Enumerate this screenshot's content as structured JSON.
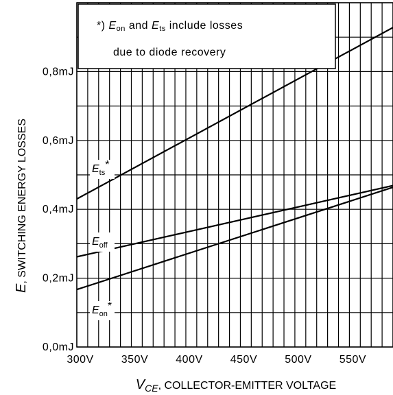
{
  "chart_data": {
    "type": "line",
    "x_label_var": "V",
    "x_label_sub": "CE",
    "x_label_rest": ", COLLECTOR-EMITTER VOLTAGE",
    "y_label_var": "E",
    "y_label_rest": ", SWITCHING ENERGY LOSSES",
    "xlim": [
      300,
      590
    ],
    "ylim": [
      0,
      1.0
    ],
    "x_ticks": [
      300,
      350,
      400,
      450,
      500,
      550
    ],
    "x_tick_labels": [
      "300V",
      "350V",
      "400V",
      "450V",
      "500V",
      "550V"
    ],
    "y_ticks": [
      0,
      0.2,
      0.4,
      0.6,
      0.8
    ],
    "y_tick_labels": [
      "0,0mJ",
      "0,2mJ",
      "0,4mJ",
      "0,6mJ",
      "0,8mJ"
    ],
    "grid": true,
    "series": [
      {
        "name": "E_ts*",
        "label_main": "E",
        "label_sub": "ts",
        "label_suffix": "*",
        "x": [
          300,
          590
        ],
        "y": [
          0.43,
          0.928
        ]
      },
      {
        "name": "E_off",
        "label_main": "E",
        "label_sub": "off",
        "label_suffix": "",
        "x": [
          300,
          590
        ],
        "y": [
          0.262,
          0.469
        ]
      },
      {
        "name": "E_on*",
        "label_main": "E",
        "label_sub": "on",
        "label_suffix": "*",
        "x": [
          300,
          590
        ],
        "y": [
          0.167,
          0.464
        ]
      }
    ],
    "annotation": {
      "line1_prefix": "*) ",
      "line1_var1": "E",
      "line1_sub1": "on",
      "line1_mid": " and ",
      "line1_var2": "E",
      "line1_sub2": "ts",
      "line1_rest": " include losses",
      "line2": "due to diode recovery"
    }
  }
}
